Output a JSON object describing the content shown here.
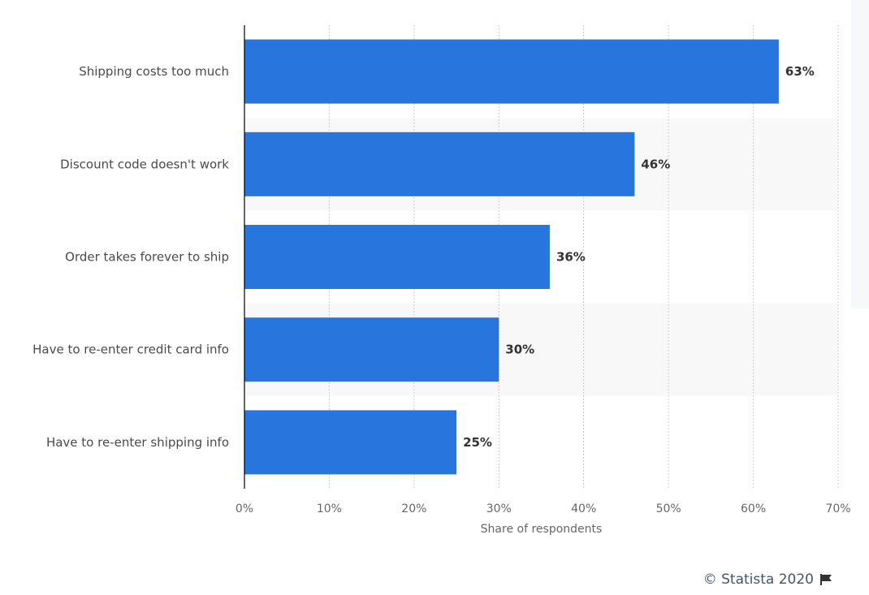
{
  "chart_data": {
    "type": "bar",
    "orientation": "horizontal",
    "categories": [
      "Shipping costs too much",
      "Discount code doesn't work",
      "Order takes forever to ship",
      "Have to re-enter credit card info",
      "Have to re-enter shipping info"
    ],
    "values": [
      63,
      46,
      36,
      30,
      25
    ],
    "value_labels": [
      "63%",
      "46%",
      "36%",
      "30%",
      "25%"
    ],
    "xlabel": "Share of respondents",
    "xlim": [
      0,
      70
    ],
    "xticks": [
      0,
      10,
      20,
      30,
      40,
      50,
      60,
      70
    ],
    "xtick_labels": [
      "0%",
      "10%",
      "20%",
      "30%",
      "40%",
      "50%",
      "60%",
      "70%"
    ],
    "grid": true,
    "bar_color": "#2876dd"
  },
  "footer": {
    "credits": "© Statista 2020",
    "flag_icon": "flag-icon"
  },
  "colors": {
    "bar": "#2876dd",
    "band": "#f8f8f8",
    "grid": "#cccccc",
    "axis": "#000000"
  }
}
